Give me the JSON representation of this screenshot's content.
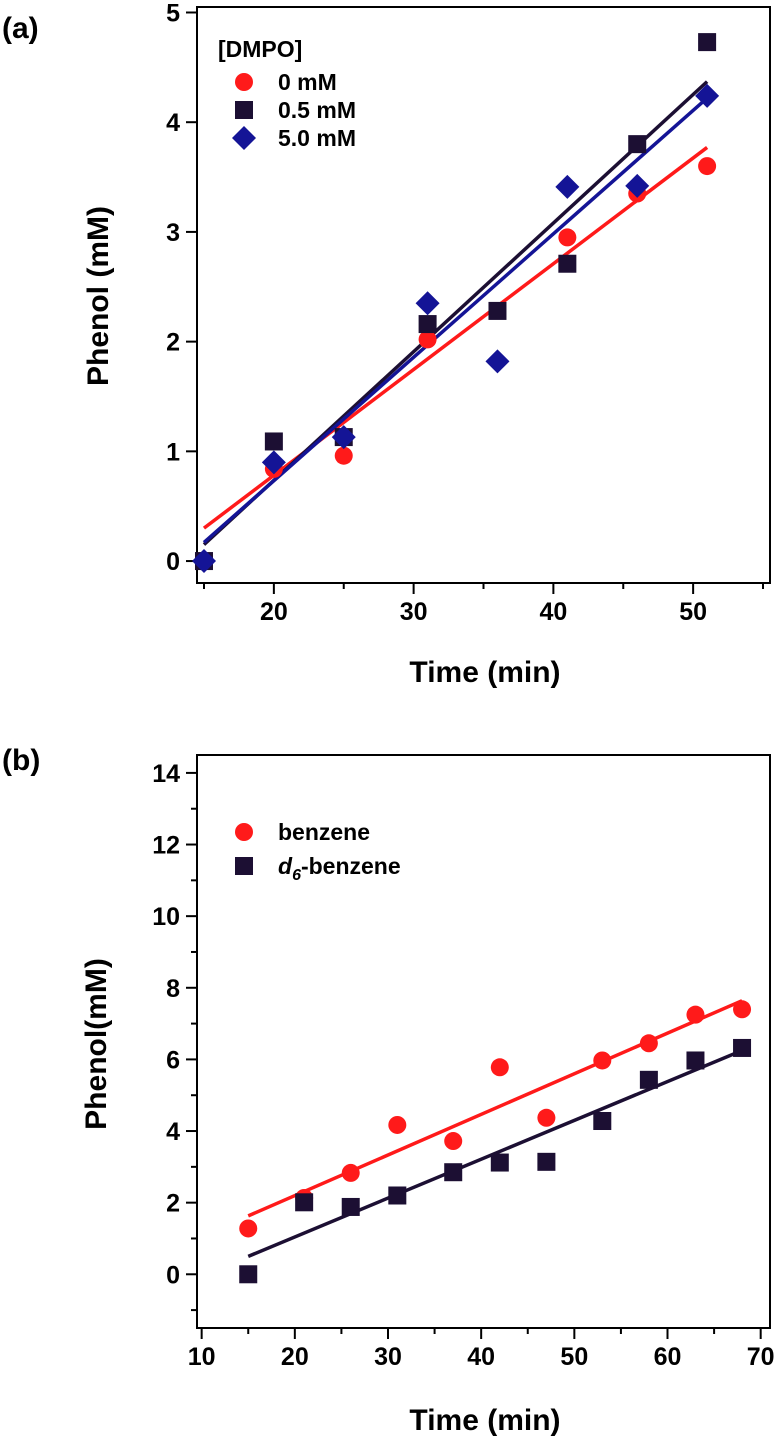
{
  "chart_data": [
    {
      "panel_label": "(a)",
      "type": "scatter",
      "xlabel": "Time (min)",
      "ylabel": "Phenol (mM)",
      "xlim": [
        14.5,
        55.5
      ],
      "ylim": [
        -0.2,
        5.05
      ],
      "xticks": [
        20,
        30,
        40,
        50
      ],
      "xminor": [
        15,
        25,
        35,
        45,
        55
      ],
      "yticks": [
        0,
        1,
        2,
        3,
        4,
        5
      ],
      "legend_title": "[DMPO]",
      "legend_position": "top-left",
      "grid": false,
      "series": [
        {
          "name": "0 mM",
          "marker": "circle",
          "color": "#ff1a1a",
          "x": [
            15,
            20,
            25,
            31,
            41,
            46,
            51
          ],
          "y": [
            0.0,
            0.84,
            0.96,
            2.02,
            2.95,
            3.35,
            3.6
          ],
          "fit": {
            "x": [
              15,
              51
            ],
            "y": [
              0.3,
              3.77
            ]
          }
        },
        {
          "name": "0.5 mM",
          "marker": "square",
          "color": "#1c0f33",
          "x": [
            15,
            20,
            25,
            31,
            36,
            41,
            46,
            51
          ],
          "y": [
            0.0,
            1.09,
            1.13,
            2.16,
            2.28,
            2.71,
            3.8,
            4.73
          ],
          "fit": {
            "x": [
              15,
              51
            ],
            "y": [
              0.15,
              4.37
            ]
          }
        },
        {
          "name": "5.0 mM",
          "marker": "diamond",
          "color": "#141496",
          "x": [
            15,
            20,
            25,
            31,
            36,
            41,
            46,
            51
          ],
          "y": [
            0.0,
            0.9,
            1.13,
            2.35,
            1.82,
            3.41,
            3.42,
            4.24
          ],
          "fit": {
            "x": [
              15,
              51
            ],
            "y": [
              0.17,
              4.22
            ]
          }
        }
      ]
    },
    {
      "panel_label": "(b)",
      "type": "scatter",
      "xlabel": "Time (min)",
      "ylabel": "Phenol(mM)",
      "xlim": [
        9.5,
        71.0
      ],
      "ylim": [
        -1.5,
        14.5
      ],
      "xticks": [
        10,
        20,
        30,
        40,
        50,
        60,
        70
      ],
      "xminor": [
        15,
        25,
        35,
        45,
        55,
        65
      ],
      "yticks": [
        0,
        2,
        4,
        6,
        8,
        10,
        12,
        14
      ],
      "yminor": [
        -1,
        1,
        3,
        5,
        7,
        9,
        11,
        13
      ],
      "legend_position": "top-left",
      "grid": false,
      "series": [
        {
          "name": "benzene",
          "marker": "circle",
          "color": "#ff1a1a",
          "x": [
            15,
            21,
            26,
            31,
            37,
            42,
            47,
            53,
            58,
            63,
            68
          ],
          "y": [
            1.28,
            2.13,
            2.83,
            4.17,
            3.72,
            5.78,
            4.37,
            5.97,
            6.45,
            7.25,
            7.4
          ],
          "fit": {
            "x": [
              15,
              68
            ],
            "y": [
              1.63,
              7.64
            ]
          }
        },
        {
          "name_prefix": "d",
          "name_sub": "6",
          "name_suffix": "-benzene",
          "marker": "square",
          "color": "#1c0f33",
          "x": [
            15,
            21,
            26,
            31,
            37,
            42,
            47,
            53,
            58,
            63,
            68
          ],
          "y": [
            0.0,
            2.01,
            1.88,
            2.2,
            2.85,
            3.12,
            3.14,
            4.28,
            5.43,
            5.97,
            6.32
          ],
          "fit": {
            "x": [
              15,
              68
            ],
            "y": [
              0.5,
              6.25
            ]
          }
        }
      ]
    }
  ]
}
